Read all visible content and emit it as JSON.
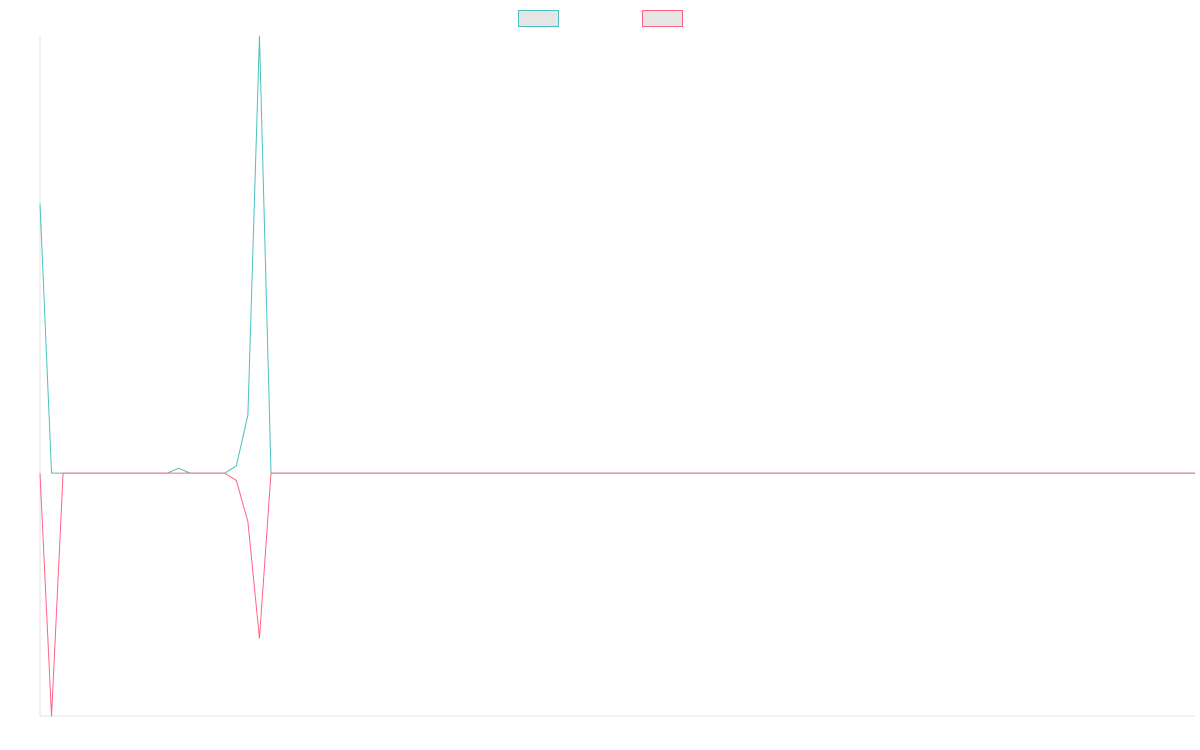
{
  "chart_data": {
    "type": "line",
    "title": "",
    "xlabel": "",
    "ylabel": "",
    "legend_placement": "top-center",
    "grid": false,
    "x": [
      0,
      1,
      2,
      3,
      4,
      5,
      6,
      7,
      8,
      9,
      10,
      11,
      12,
      13,
      14,
      15,
      16,
      17,
      18,
      19,
      20,
      21,
      22,
      23,
      24,
      25,
      26,
      27,
      28,
      29,
      30,
      31,
      32,
      33,
      34,
      35,
      36,
      37,
      38,
      39,
      40,
      41,
      42,
      43,
      44,
      45,
      46,
      47,
      48,
      49,
      50,
      51,
      52,
      53,
      54,
      55,
      56,
      57,
      58,
      59,
      60,
      61,
      62,
      63,
      64,
      65,
      66,
      67,
      68,
      69,
      70,
      71,
      72,
      73,
      74,
      75,
      76,
      77,
      78,
      79,
      80,
      81,
      82,
      83,
      84,
      85,
      86,
      87,
      88,
      89,
      90,
      91,
      92,
      93,
      94,
      95,
      96,
      97,
      98,
      99,
      100
    ],
    "xlim": [
      0,
      100
    ],
    "ylim": [
      -1.0,
      1.8
    ],
    "series": [
      {
        "name": "",
        "color": "#4bc0c0",
        "values": [
          1.11,
          0,
          0,
          0,
          0,
          0,
          0,
          0,
          0,
          0,
          0,
          0,
          0.02,
          0,
          0,
          0,
          0,
          0.03,
          0.24,
          1.8,
          0,
          0,
          0,
          0,
          0,
          0,
          0,
          0,
          0,
          0,
          0,
          0,
          0,
          0,
          0,
          0,
          0,
          0,
          0,
          0,
          0,
          0,
          0,
          0,
          0,
          0,
          0,
          0,
          0,
          0,
          0,
          0,
          0,
          0,
          0,
          0,
          0,
          0,
          0,
          0,
          0,
          0,
          0,
          0,
          0,
          0,
          0,
          0,
          0,
          0,
          0,
          0,
          0,
          0,
          0,
          0,
          0,
          0,
          0,
          0,
          0,
          0,
          0,
          0,
          0,
          0,
          0,
          0,
          0,
          0,
          0,
          0,
          0,
          0,
          0,
          0,
          0,
          0,
          0,
          0,
          0
        ]
      },
      {
        "name": "",
        "color": "#ff6384",
        "values": [
          0,
          -1.0,
          0,
          0,
          0,
          0,
          0,
          0,
          0,
          0,
          0,
          0,
          0,
          0,
          0,
          0,
          0,
          -0.03,
          -0.2,
          -0.68,
          0,
          0,
          0,
          0,
          0,
          0,
          0,
          0,
          0,
          0,
          0,
          0,
          0,
          0,
          0,
          0,
          0,
          0,
          0,
          0,
          0,
          0,
          0,
          0,
          0,
          0,
          0,
          0,
          0,
          0,
          0,
          0,
          0,
          0,
          0,
          0,
          0,
          0,
          0,
          0,
          0,
          0,
          0,
          0,
          0,
          0,
          0,
          0,
          0,
          0,
          0,
          0,
          0,
          0,
          0,
          0,
          0,
          0,
          0,
          0,
          0,
          0,
          0,
          0,
          0,
          0,
          0,
          0,
          0,
          0,
          0,
          0,
          0,
          0,
          0,
          0,
          0,
          0,
          0,
          0,
          0
        ]
      }
    ]
  }
}
